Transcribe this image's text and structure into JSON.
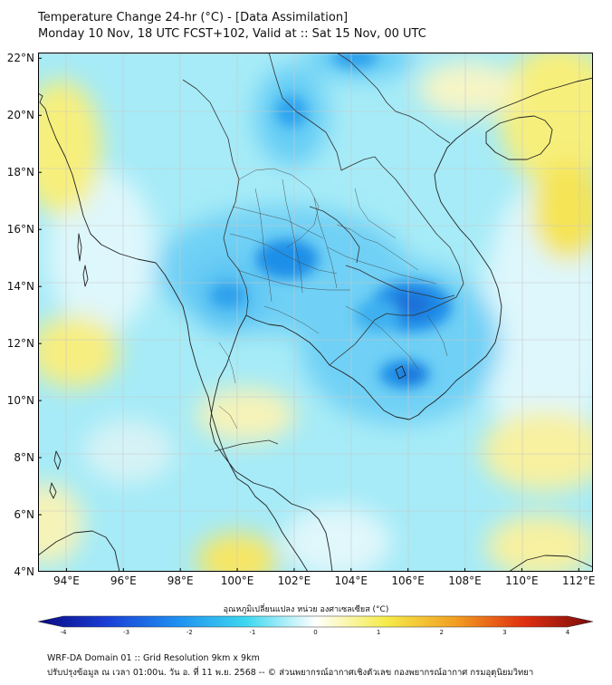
{
  "header": {
    "title_line1": "Temperature Change 24-hr (°C) - [Data Assimilation]",
    "title_line2": "Monday 10 Nov, 18 UTC FCST+102, Valid at :: Sat 15 Nov, 00 UTC"
  },
  "map": {
    "lon_range": [
      93,
      112.5
    ],
    "lat_range": [
      4,
      22.2
    ],
    "lon_ticks": [
      "94°E",
      "96°E",
      "98°E",
      "100°E",
      "102°E",
      "104°E",
      "106°E",
      "108°E",
      "110°E",
      "112°E"
    ],
    "lat_ticks": [
      "22°N",
      "20°N",
      "18°N",
      "16°N",
      "14°N",
      "12°N",
      "10°N",
      "8°N",
      "6°N",
      "4°N"
    ],
    "lon_tick_values": [
      94,
      96,
      98,
      100,
      102,
      104,
      106,
      108,
      110,
      112
    ],
    "lat_tick_values": [
      22,
      20,
      18,
      16,
      14,
      12,
      10,
      8,
      6,
      4
    ]
  },
  "colorbar": {
    "label": "อุณหภูมิเปลี่ยนแปลง หน่วย องศาเซลเซียส (°C)",
    "min": -4,
    "max": 4,
    "ticks": [
      "-4",
      "-3",
      "-2",
      "-1",
      "0",
      "1",
      "2",
      "3",
      "4"
    ],
    "tick_values": [
      -4,
      -3,
      -2,
      -1,
      0,
      1,
      2,
      3,
      4
    ],
    "colors": [
      "#0a0a80",
      "#1a3fd6",
      "#1f8ff0",
      "#3dd8f0",
      "#ffffff",
      "#f5ec4a",
      "#f2a022",
      "#e03010",
      "#7a0a0a"
    ]
  },
  "footer": {
    "line1": "WRF-DA Domain 01 :: Grid Resolution 9km x 9km",
    "line2": "ปรับปรุงข้อมูล ณ เวลา 01:00น. วัน อ. ที่ 11 พ.ย. 2568 -- © ส่วนพยากรณ์อากาศเชิงตัวเลข กองพยากรณ์อากาศ กรมอุตุนิยมวิทยา"
  }
}
